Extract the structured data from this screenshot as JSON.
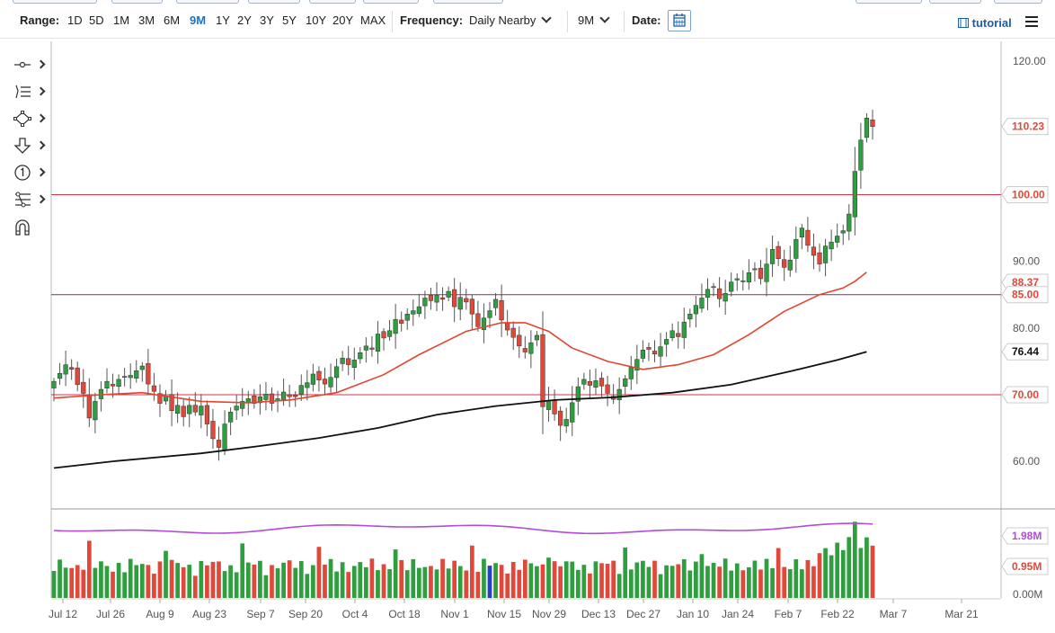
{
  "toolbar": {
    "range_label": "Range:",
    "ranges": [
      "1D",
      "5D",
      "1M",
      "3M",
      "6M",
      "9M",
      "1Y",
      "2Y",
      "3Y",
      "5Y",
      "10Y",
      "20Y",
      "MAX"
    ],
    "active_range": "9M",
    "frequency_label": "Frequency:",
    "frequency_value": "Daily Nearby",
    "period_value": "9M",
    "date_label": "Date:",
    "tutorial_label": "tutorial"
  },
  "tools": [
    "crosshair-tool",
    "trend-line-tool",
    "shapes-tool",
    "arrow-down-tool",
    "numbered-marker-tool",
    "fibonacci-tool",
    "magnet-tool"
  ],
  "colors": {
    "up": "#2e9e3e",
    "down": "#e0483a",
    "ma_red": "#e2452f",
    "ma_black": "#111111",
    "hline_red": "#d8334a",
    "hline_purple": "#8e2a5e",
    "rsi": "#b24bd8",
    "vol_blue": "#2440c8"
  },
  "chart_data": {
    "type": "candlestick",
    "x_labels": [
      "Jul 12",
      "Jul 26",
      "Aug 9",
      "Aug 23",
      "Sep 7",
      "Sep 20",
      "Oct 4",
      "Oct 18",
      "Nov 1",
      "Nov 15",
      "Nov 29",
      "Dec 13",
      "Dec 27",
      "Jan 10",
      "Jan 24",
      "Feb 7",
      "Feb 22",
      "Mar 7",
      "Mar 21"
    ],
    "y_ticks": [
      "60.00",
      "70.00",
      "80.00",
      "90.00",
      "100.00",
      "110.00",
      "120.00"
    ],
    "ylim": [
      53,
      123
    ],
    "price_tags": [
      {
        "label": "110.23",
        "value": 110.23,
        "color": "#e0483a"
      },
      {
        "label": "100.00",
        "value": 100.0,
        "color": "#e0483a"
      },
      {
        "label": "88.37",
        "value": 88.37,
        "color": "#e0483a"
      },
      {
        "label": "85.00",
        "value": 85.0,
        "color": "#e0483a"
      },
      {
        "label": "76.44",
        "value": 76.44,
        "color": "#111111"
      },
      {
        "label": "70.00",
        "value": 70.0,
        "color": "#e0483a"
      }
    ],
    "horizontal_lines": [
      {
        "value": 100.0,
        "color": "#d8334a"
      },
      {
        "value": 85.0,
        "color": "#8e2a5e"
      },
      {
        "value": 70.0,
        "color": "#d8334a"
      }
    ],
    "closes": [
      72.0,
      73.2,
      74.5,
      73.8,
      71.5,
      70.2,
      66.5,
      69.0,
      70.8,
      72.0,
      71.3,
      72.3,
      72.6,
      72.9,
      73.6,
      74.3,
      71.6,
      70.5,
      68.7,
      69.8,
      67.6,
      68.4,
      66.7,
      68.4,
      67.4,
      68.3,
      65.6,
      63.4,
      62.1,
      65.6,
      67.4,
      68.3,
      69.0,
      69.4,
      68.7,
      69.7,
      70.1,
      68.7,
      69.4,
      70.4,
      69.7,
      69.7,
      71.4,
      71.8,
      73.1,
      72.2,
      71.6,
      72.6,
      74.2,
      75.5,
      74.5,
      75.2,
      76.3,
      77.3,
      76.8,
      79.1,
      78.5,
      79.6,
      81.3,
      80.7,
      82.1,
      82.6,
      83.2,
      84.5,
      84.1,
      84.9,
      84.3,
      85.5,
      83.2,
      84.6,
      83.9,
      82.1,
      80.2,
      81.5,
      82.6,
      84.3,
      81.2,
      79.7,
      78.6,
      77.3,
      76.4,
      77.8,
      78.9,
      68.2,
      69.1,
      67.1,
      65.4,
      66.3,
      68.8,
      71.2,
      72.3,
      71.4,
      72.1,
      71.3,
      70.2,
      69.3,
      70.8,
      72.4,
      74.1,
      75.3,
      76.7,
      76.8,
      76.1,
      77.2,
      78.3,
      79.6,
      78.7,
      80.9,
      82.1,
      83.4,
      84.5,
      85.8,
      86.1,
      84.4,
      85.2,
      86.9,
      87.4,
      87.1,
      88.3,
      88.9,
      87.4,
      89.6,
      91.8,
      90.4,
      89.1,
      90.2,
      93.3,
      95.0,
      92.4,
      90.9,
      89.6,
      92.3,
      92.9,
      93.8,
      94.6,
      97.1,
      103.5,
      108.2,
      111.5,
      110.23
    ],
    "ma_50": [
      [
        0,
        69.5
      ],
      [
        8,
        70.0
      ],
      [
        15,
        70.3
      ],
      [
        25,
        69.0
      ],
      [
        33,
        68.8
      ],
      [
        40,
        69.2
      ],
      [
        48,
        70.3
      ],
      [
        56,
        73.0
      ],
      [
        62,
        76.0
      ],
      [
        70,
        79.5
      ],
      [
        76,
        80.8
      ],
      [
        80,
        80.8
      ],
      [
        84,
        79.5
      ],
      [
        88,
        77.0
      ],
      [
        94,
        75.0
      ],
      [
        100,
        73.8
      ],
      [
        106,
        74.5
      ],
      [
        112,
        76.0
      ],
      [
        118,
        79.0
      ],
      [
        124,
        82.5
      ],
      [
        130,
        85.0
      ],
      [
        134,
        86.0
      ],
      [
        136,
        87.0
      ],
      [
        138,
        88.37
      ]
    ],
    "ma_200": [
      [
        0,
        59.0
      ],
      [
        10,
        60.0
      ],
      [
        25,
        61.2
      ],
      [
        35,
        62.3
      ],
      [
        45,
        63.5
      ],
      [
        55,
        65.0
      ],
      [
        65,
        67.0
      ],
      [
        75,
        68.3
      ],
      [
        85,
        69.2
      ],
      [
        95,
        69.6
      ],
      [
        105,
        70.3
      ],
      [
        115,
        71.5
      ],
      [
        125,
        73.5
      ],
      [
        133,
        75.2
      ],
      [
        138,
        76.44
      ]
    ],
    "volume_tags": [
      {
        "label": "1.98M",
        "color": "#b24bd8"
      },
      {
        "label": "0.95M",
        "color": "#e0483a"
      },
      {
        "label": "0.00M",
        "color": "#555555"
      }
    ]
  }
}
